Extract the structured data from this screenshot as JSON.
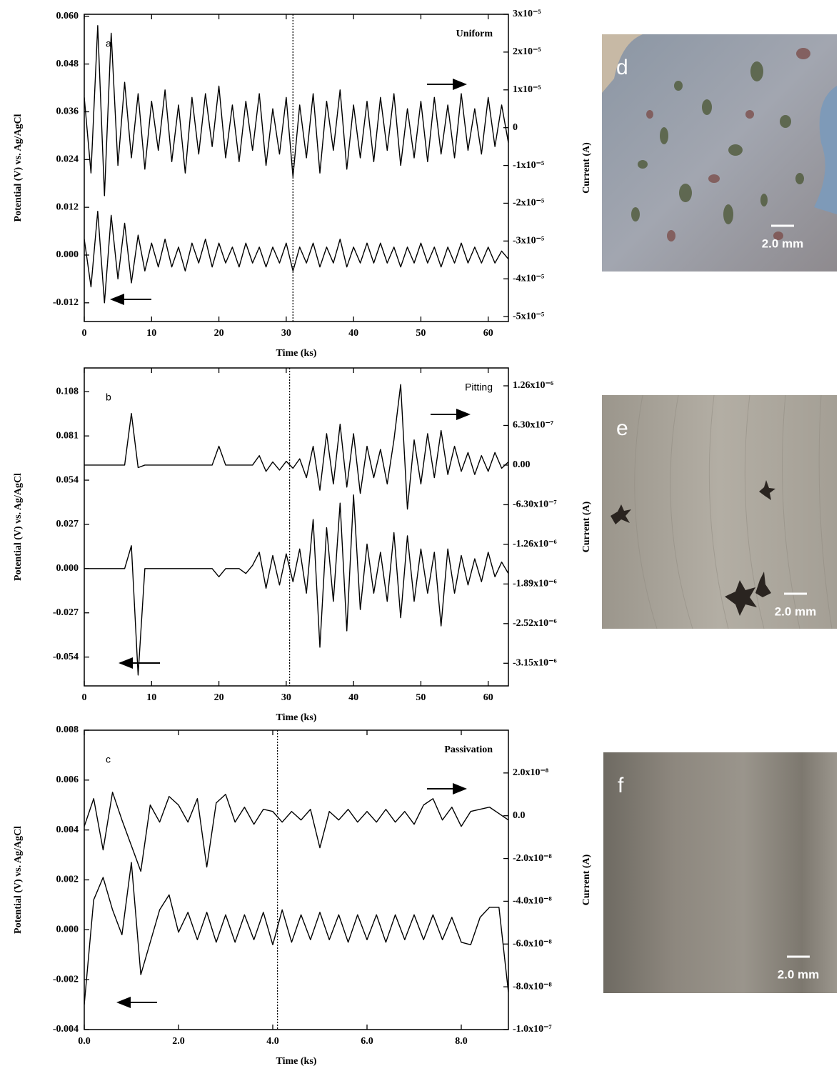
{
  "chart_data": [
    {
      "type": "line",
      "label": "a",
      "annotation": "Uniform",
      "xlabel": "Time (ks)",
      "ylabel": "Potential (V) vs. Ag/AgCl",
      "y2label": "Current (A)",
      "x": [
        0,
        1,
        2,
        3,
        4,
        5,
        6,
        7,
        8,
        9,
        10,
        11,
        12,
        13,
        14,
        15,
        16,
        17,
        18,
        19,
        20,
        21,
        22,
        23,
        24,
        25,
        26,
        27,
        28,
        29,
        30,
        31,
        32,
        33,
        34,
        35,
        36,
        37,
        38,
        39,
        40,
        41,
        42,
        43,
        44,
        45,
        46,
        47,
        48,
        49,
        50,
        51,
        52,
        53,
        54,
        55,
        56,
        57,
        58,
        59,
        60,
        61,
        62,
        63
      ],
      "xlim": [
        0,
        63
      ],
      "xticks": [
        0,
        10,
        20,
        30,
        40,
        50,
        60
      ],
      "ylim": [
        -0.0167,
        0.0605
      ],
      "yticks": [
        {
          "value": 0.06,
          "label": "0.060"
        },
        0.048,
        0.036,
        0.024,
        0.012,
        {
          "value": 0,
          "label": "0.000"
        },
        -0.012
      ],
      "y2lim": [
        -5.13e-05,
        3e-05
      ],
      "y2ticks": [
        {
          "value": 3e-05,
          "label": "3x10⁻⁵"
        },
        {
          "value": 2e-05,
          "label": "2x10⁻⁵"
        },
        {
          "value": 1e-05,
          "label": "1x10⁻⁵"
        },
        0,
        {
          "value": -1e-05,
          "label": "-1x10⁻⁵"
        },
        {
          "value": -2e-05,
          "label": "-2x10⁻⁵"
        },
        {
          "value": -3e-05,
          "label": "-3x10⁻⁵"
        },
        {
          "value": -4e-05,
          "label": "-4x10⁻⁵"
        },
        {
          "value": -5e-05,
          "label": "-5x10⁻⁵"
        }
      ],
      "marker_x": 31,
      "series": [
        {
          "color": "#000000",
          "axis": "y",
          "values": [
            0.004,
            -0.008,
            0.011,
            -0.012,
            0.01,
            -0.006,
            0.008,
            -0.007,
            0.005,
            -0.004,
            0.003,
            -0.003,
            0.004,
            -0.003,
            0.002,
            -0.004,
            0.003,
            -0.002,
            0.004,
            -0.003,
            0.003,
            -0.002,
            0.002,
            -0.003,
            0.003,
            -0.002,
            0.002,
            -0.003,
            0.002,
            -0.002,
            0.003,
            -0.004,
            0.002,
            -0.002,
            0.003,
            -0.003,
            0.002,
            -0.002,
            0.004,
            -0.003,
            0.002,
            -0.002,
            0.003,
            -0.002,
            0.003,
            -0.002,
            0.002,
            -0.003,
            0.002,
            -0.002,
            0.003,
            -0.002,
            0.002,
            -0.003,
            0.002,
            -0.002,
            0.003,
            -0.002,
            0.002,
            -0.002,
            0.002,
            -0.002,
            0.001,
            -0.001
          ]
        },
        {
          "color": "#000000",
          "axis": "y2",
          "values": [
            8e-06,
            -1.2e-05,
            2.7e-05,
            -1.8e-05,
            2.5e-05,
            -1e-05,
            1.2e-05,
            -8e-06,
            9e-06,
            -1.1e-05,
            7e-06,
            -6e-06,
            1e-05,
            -9e-06,
            6e-06,
            -1.2e-05,
            8e-06,
            -7e-06,
            9e-06,
            -5e-06,
            1.1e-05,
            -8e-06,
            6e-06,
            -9e-06,
            7e-06,
            -6e-06,
            9e-06,
            -1e-05,
            5e-06,
            -7e-06,
            8e-06,
            -1.3e-05,
            6e-06,
            -8e-06,
            9e-06,
            -1.2e-05,
            7e-06,
            -6e-06,
            1e-05,
            -1.1e-05,
            6e-06,
            -8e-06,
            7e-06,
            -9e-06,
            8e-06,
            -6e-06,
            9e-06,
            -1e-05,
            5e-06,
            -8e-06,
            7e-06,
            -9e-06,
            8e-06,
            -7e-06,
            6e-06,
            -8e-06,
            9e-06,
            -6e-06,
            5e-06,
            -7e-06,
            8e-06,
            -5e-06,
            6e-06,
            -4e-06
          ]
        }
      ]
    },
    {
      "type": "line",
      "label": "b",
      "annotation": "Pitting",
      "xlabel": "Time (ks)",
      "ylabel": "Potential (V) vs. Ag/AgCl",
      "y2label": "Current (A)",
      "x": [
        0,
        1,
        2,
        3,
        4,
        5,
        6,
        7,
        8,
        9,
        10,
        11,
        12,
        13,
        14,
        15,
        16,
        17,
        18,
        19,
        20,
        21,
        22,
        23,
        24,
        25,
        26,
        27,
        28,
        29,
        30,
        31,
        32,
        33,
        34,
        35,
        36,
        37,
        38,
        39,
        40,
        41,
        42,
        43,
        44,
        45,
        46,
        47,
        48,
        49,
        50,
        51,
        52,
        53,
        54,
        55,
        56,
        57,
        58,
        59,
        60,
        61,
        62,
        63
      ],
      "xlim": [
        0,
        63
      ],
      "xticks": [
        0,
        10,
        20,
        30,
        40,
        50,
        60
      ],
      "ylim": [
        -0.0716,
        0.1225
      ],
      "yticks": [
        0.108,
        0.081,
        0.054,
        0.027,
        {
          "value": 0,
          "label": "0.000"
        },
        -0.027,
        -0.054
      ],
      "y2lim": [
        -3.51e-06,
        1.544e-06
      ],
      "y2ticks": [
        {
          "value": 1.26e-06,
          "label": "1.26x10⁻⁶"
        },
        {
          "value": 6.3e-07,
          "label": "6.30x10⁻⁷"
        },
        {
          "value": 0,
          "label": "0.00"
        },
        {
          "value": -6.3e-07,
          "label": "-6.30x10⁻⁷"
        },
        {
          "value": -1.26e-06,
          "label": "-1.26x10⁻⁶"
        },
        {
          "value": -1.89e-06,
          "label": "-1.89x10⁻⁶"
        },
        {
          "value": -2.52e-06,
          "label": "-2.52x10⁻⁶"
        },
        {
          "value": -3.15e-06,
          "label": "-3.15x10⁻⁶"
        }
      ],
      "marker_x": 30.5,
      "series": [
        {
          "color": "#000000",
          "axis": "y",
          "values": [
            0,
            0,
            0,
            0,
            0,
            0,
            0,
            0.014,
            -0.065,
            0,
            0,
            0,
            0,
            0,
            0,
            0,
            0,
            0,
            0,
            0,
            -0.005,
            0,
            0,
            0,
            -0.003,
            0.002,
            0.01,
            -0.012,
            0.008,
            -0.01,
            0.009,
            -0.008,
            0.012,
            -0.015,
            0.03,
            -0.048,
            0.025,
            -0.02,
            0.04,
            -0.038,
            0.045,
            -0.025,
            0.015,
            -0.015,
            0.01,
            -0.02,
            0.022,
            -0.03,
            0.02,
            -0.02,
            0.012,
            -0.015,
            0.01,
            -0.035,
            0.012,
            -0.015,
            0.008,
            -0.01,
            0.006,
            -0.008,
            0.01,
            -0.005,
            0.004,
            -0.003
          ]
        },
        {
          "color": "#000000",
          "axis": "y2",
          "values": [
            0,
            0,
            0,
            0,
            0,
            0,
            0,
            8.2e-07,
            -4e-08,
            0,
            0,
            0,
            0,
            0,
            0,
            0,
            0,
            0,
            0,
            0,
            3e-07,
            0,
            0,
            0,
            0,
            0,
            1.5e-07,
            -1e-07,
            5e-08,
            -8e-08,
            6e-08,
            -5e-08,
            1e-07,
            -2e-07,
            3e-07,
            -4e-07,
            5e-07,
            -3e-07,
            6.5e-07,
            -3.5e-07,
            5e-07,
            -4.5e-07,
            3e-07,
            -2e-07,
            2.5e-07,
            -3e-07,
            4e-07,
            1.28e-06,
            -7e-07,
            4e-07,
            -3e-07,
            5e-07,
            -2e-07,
            5.5e-07,
            -1.5e-07,
            3e-07,
            -1e-07,
            2e-07,
            -1.5e-07,
            1.5e-07,
            -1e-07,
            2e-07,
            -5e-08,
            5e-08
          ]
        }
      ]
    },
    {
      "type": "line",
      "label": "c",
      "annotation": "Passivation",
      "xlabel": "Time (ks)",
      "ylabel": "Potential (V) vs. Ag/AgCl",
      "y2label": "Current (A)",
      "x": [
        0,
        0.2,
        0.4,
        0.6,
        0.8,
        1,
        1.2,
        1.4,
        1.6,
        1.8,
        2,
        2.2,
        2.4,
        2.6,
        2.8,
        3,
        3.2,
        3.4,
        3.6,
        3.8,
        4,
        4.2,
        4.4,
        4.6,
        4.8,
        5,
        5.2,
        5.4,
        5.6,
        5.8,
        6,
        6.2,
        6.4,
        6.6,
        6.8,
        7,
        7.2,
        7.4,
        7.6,
        7.8,
        8,
        8.2,
        8.4,
        8.6,
        8.8,
        9
      ],
      "xlim": [
        0,
        9
      ],
      "xticks": [
        {
          "value": 0,
          "label": "0.0"
        },
        {
          "value": 2,
          "label": "2.0"
        },
        {
          "value": 4,
          "label": "4.0"
        },
        {
          "value": 6,
          "label": "6.0"
        },
        {
          "value": 8,
          "label": "8.0"
        }
      ],
      "ylim": [
        -0.004,
        0.008
      ],
      "yticks": [
        0.008,
        0.006,
        0.004,
        0.002,
        {
          "value": 0,
          "label": "0.000"
        },
        -0.002,
        -0.004
      ],
      "y2lim": [
        -1e-07,
        4e-08
      ],
      "y2ticks": [
        {
          "value": 2e-08,
          "label": "2.0x10⁻⁸"
        },
        {
          "value": 0,
          "label": "0.0"
        },
        {
          "value": -2e-08,
          "label": "-2.0x10⁻⁸"
        },
        {
          "value": -4e-08,
          "label": "-4.0x10⁻⁸"
        },
        {
          "value": -6e-08,
          "label": "-6.0x10⁻⁸"
        },
        {
          "value": -8e-08,
          "label": "-8.0x10⁻⁸"
        },
        {
          "value": -1e-07,
          "label": "-1.0x10⁻⁷"
        }
      ],
      "marker_x": 4.1,
      "series": [
        {
          "color": "#000000",
          "axis": "y",
          "values": [
            -0.003,
            0.0012,
            0.0021,
            0.0008,
            -0.0002,
            0.0027,
            -0.0018,
            -0.0005,
            0.0008,
            0.0014,
            -0.0001,
            0.0007,
            -0.0004,
            0.0007,
            -0.0005,
            0.0006,
            -0.0005,
            0.0006,
            -0.0004,
            0.0007,
            -0.0006,
            0.0008,
            -0.0005,
            0.0006,
            -0.0004,
            0.0007,
            -0.0004,
            0.0006,
            -0.0005,
            0.0006,
            -0.0004,
            0.0006,
            -0.0005,
            0.0006,
            -0.0004,
            0.0006,
            -0.0004,
            0.0006,
            -0.0004,
            0.0005,
            -0.0005,
            -0.0006,
            0.0005,
            0.0009,
            0.0009,
            -0.0025
          ]
        },
        {
          "color": "#000000",
          "axis": "y2",
          "values": [
            -5e-09,
            8e-09,
            -1.6e-08,
            1.1e-08,
            -2e-09,
            -1.4e-08,
            -2.6e-08,
            5e-09,
            -3e-09,
            9e-09,
            5e-09,
            -3e-09,
            8e-09,
            -2.4e-08,
            6e-09,
            1e-08,
            -3e-09,
            4e-09,
            -4e-09,
            3e-09,
            2e-09,
            -3e-09,
            2e-09,
            -2e-09,
            3e-09,
            -1.5e-08,
            2e-09,
            -2e-09,
            3e-09,
            -3e-09,
            2e-09,
            -3e-09,
            3e-09,
            -3e-09,
            2e-09,
            -4e-09,
            5e-09,
            8e-09,
            -2e-09,
            4e-09,
            -5e-09,
            2e-09,
            3e-09,
            4e-09,
            1e-09,
            -2e-09
          ]
        }
      ]
    }
  ],
  "panels": [
    {
      "label": "d",
      "scale": "2.0 mm"
    },
    {
      "label": "e",
      "scale": "2.0 mm"
    },
    {
      "label": "f",
      "scale": "2.0 mm"
    }
  ]
}
